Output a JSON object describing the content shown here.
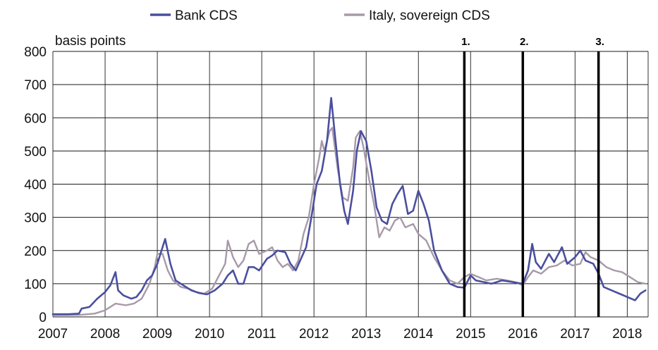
{
  "chart_data": {
    "type": "line",
    "ylabel": "basis points",
    "ylim": [
      0,
      800
    ],
    "xlim": [
      2007,
      2018.4
    ],
    "y_ticks": [
      0,
      100,
      200,
      300,
      400,
      500,
      600,
      700,
      800
    ],
    "x_ticks": [
      2007,
      2008,
      2009,
      2010,
      2011,
      2012,
      2013,
      2014,
      2015,
      2016,
      2017,
      2018
    ],
    "grid": true,
    "legend_position": "top-center",
    "vertical_markers": [
      {
        "label": "1.",
        "x": 2014.88
      },
      {
        "label": "2.",
        "x": 2016.0
      },
      {
        "label": "3.",
        "x": 2017.45
      }
    ],
    "series": [
      {
        "name": "Bank CDS",
        "color": "#4a4f9f",
        "points": [
          [
            2007.0,
            8
          ],
          [
            2007.3,
            8
          ],
          [
            2007.5,
            10
          ],
          [
            2007.55,
            25
          ],
          [
            2007.7,
            30
          ],
          [
            2007.85,
            55
          ],
          [
            2008.0,
            75
          ],
          [
            2008.1,
            95
          ],
          [
            2008.2,
            135
          ],
          [
            2008.25,
            80
          ],
          [
            2008.35,
            65
          ],
          [
            2008.5,
            55
          ],
          [
            2008.6,
            60
          ],
          [
            2008.7,
            80
          ],
          [
            2008.8,
            110
          ],
          [
            2008.9,
            125
          ],
          [
            2009.0,
            160
          ],
          [
            2009.1,
            210
          ],
          [
            2009.15,
            235
          ],
          [
            2009.25,
            160
          ],
          [
            2009.35,
            110
          ],
          [
            2009.5,
            95
          ],
          [
            2009.65,
            80
          ],
          [
            2009.8,
            72
          ],
          [
            2009.95,
            68
          ],
          [
            2010.1,
            80
          ],
          [
            2010.25,
            100
          ],
          [
            2010.35,
            125
          ],
          [
            2010.45,
            140
          ],
          [
            2010.55,
            100
          ],
          [
            2010.65,
            100
          ],
          [
            2010.75,
            150
          ],
          [
            2010.85,
            150
          ],
          [
            2010.95,
            140
          ],
          [
            2011.1,
            175
          ],
          [
            2011.2,
            185
          ],
          [
            2011.3,
            200
          ],
          [
            2011.45,
            195
          ],
          [
            2011.55,
            160
          ],
          [
            2011.65,
            140
          ],
          [
            2011.75,
            175
          ],
          [
            2011.85,
            210
          ],
          [
            2011.95,
            300
          ],
          [
            2012.05,
            400
          ],
          [
            2012.15,
            440
          ],
          [
            2012.25,
            530
          ],
          [
            2012.33,
            660
          ],
          [
            2012.4,
            550
          ],
          [
            2012.5,
            400
          ],
          [
            2012.58,
            320
          ],
          [
            2012.65,
            280
          ],
          [
            2012.75,
            380
          ],
          [
            2012.82,
            500
          ],
          [
            2012.9,
            560
          ],
          [
            2013.0,
            530
          ],
          [
            2013.1,
            440
          ],
          [
            2013.2,
            330
          ],
          [
            2013.3,
            290
          ],
          [
            2013.4,
            280
          ],
          [
            2013.5,
            340
          ],
          [
            2013.6,
            370
          ],
          [
            2013.7,
            395
          ],
          [
            2013.8,
            310
          ],
          [
            2013.9,
            320
          ],
          [
            2014.0,
            380
          ],
          [
            2014.1,
            340
          ],
          [
            2014.2,
            290
          ],
          [
            2014.3,
            200
          ],
          [
            2014.45,
            140
          ],
          [
            2014.6,
            100
          ],
          [
            2014.75,
            90
          ],
          [
            2014.88,
            88
          ],
          [
            2015.0,
            125
          ],
          [
            2015.1,
            110
          ],
          [
            2015.25,
            105
          ],
          [
            2015.4,
            100
          ],
          [
            2015.6,
            110
          ],
          [
            2015.8,
            105
          ],
          [
            2016.0,
            100
          ],
          [
            2016.1,
            140
          ],
          [
            2016.18,
            220
          ],
          [
            2016.25,
            165
          ],
          [
            2016.35,
            145
          ],
          [
            2016.5,
            190
          ],
          [
            2016.6,
            165
          ],
          [
            2016.75,
            210
          ],
          [
            2016.85,
            160
          ],
          [
            2017.0,
            180
          ],
          [
            2017.1,
            200
          ],
          [
            2017.2,
            170
          ],
          [
            2017.35,
            160
          ],
          [
            2017.45,
            130
          ],
          [
            2017.55,
            90
          ],
          [
            2017.7,
            80
          ],
          [
            2017.85,
            70
          ],
          [
            2018.0,
            60
          ],
          [
            2018.15,
            50
          ],
          [
            2018.25,
            70
          ],
          [
            2018.35,
            80
          ]
        ]
      },
      {
        "name": "Italy, sovereign CDS",
        "color": "#a899a9",
        "points": [
          [
            2007.0,
            5
          ],
          [
            2007.5,
            6
          ],
          [
            2007.8,
            10
          ],
          [
            2008.0,
            20
          ],
          [
            2008.2,
            40
          ],
          [
            2008.4,
            35
          ],
          [
            2008.55,
            40
          ],
          [
            2008.7,
            55
          ],
          [
            2008.85,
            100
          ],
          [
            2008.95,
            150
          ],
          [
            2009.0,
            190
          ],
          [
            2009.1,
            190
          ],
          [
            2009.2,
            140
          ],
          [
            2009.3,
            110
          ],
          [
            2009.45,
            90
          ],
          [
            2009.6,
            85
          ],
          [
            2009.75,
            75
          ],
          [
            2009.9,
            70
          ],
          [
            2010.05,
            85
          ],
          [
            2010.2,
            130
          ],
          [
            2010.3,
            160
          ],
          [
            2010.35,
            230
          ],
          [
            2010.45,
            180
          ],
          [
            2010.55,
            150
          ],
          [
            2010.65,
            170
          ],
          [
            2010.75,
            220
          ],
          [
            2010.85,
            230
          ],
          [
            2010.95,
            190
          ],
          [
            2011.1,
            200
          ],
          [
            2011.2,
            210
          ],
          [
            2011.3,
            170
          ],
          [
            2011.4,
            150
          ],
          [
            2011.5,
            160
          ],
          [
            2011.6,
            140
          ],
          [
            2011.7,
            170
          ],
          [
            2011.8,
            250
          ],
          [
            2011.9,
            300
          ],
          [
            2012.0,
            400
          ],
          [
            2012.1,
            480
          ],
          [
            2012.15,
            530
          ],
          [
            2012.2,
            500
          ],
          [
            2012.3,
            560
          ],
          [
            2012.35,
            570
          ],
          [
            2012.45,
            450
          ],
          [
            2012.55,
            360
          ],
          [
            2012.65,
            350
          ],
          [
            2012.75,
            450
          ],
          [
            2012.8,
            540
          ],
          [
            2012.88,
            560
          ],
          [
            2012.95,
            510
          ],
          [
            2013.05,
            420
          ],
          [
            2013.15,
            340
          ],
          [
            2013.25,
            240
          ],
          [
            2013.35,
            270
          ],
          [
            2013.45,
            260
          ],
          [
            2013.55,
            290
          ],
          [
            2013.65,
            300
          ],
          [
            2013.75,
            270
          ],
          [
            2013.9,
            280
          ],
          [
            2014.0,
            250
          ],
          [
            2014.15,
            230
          ],
          [
            2014.3,
            180
          ],
          [
            2014.45,
            140
          ],
          [
            2014.6,
            110
          ],
          [
            2014.75,
            100
          ],
          [
            2014.88,
            120
          ],
          [
            2015.0,
            130
          ],
          [
            2015.15,
            120
          ],
          [
            2015.3,
            110
          ],
          [
            2015.5,
            115
          ],
          [
            2015.7,
            110
          ],
          [
            2015.85,
            105
          ],
          [
            2016.0,
            95
          ],
          [
            2016.1,
            120
          ],
          [
            2016.2,
            140
          ],
          [
            2016.35,
            130
          ],
          [
            2016.5,
            150
          ],
          [
            2016.65,
            155
          ],
          [
            2016.8,
            170
          ],
          [
            2016.95,
            155
          ],
          [
            2017.1,
            160
          ],
          [
            2017.2,
            195
          ],
          [
            2017.3,
            180
          ],
          [
            2017.45,
            170
          ],
          [
            2017.6,
            150
          ],
          [
            2017.75,
            140
          ],
          [
            2017.9,
            135
          ],
          [
            2018.05,
            120
          ],
          [
            2018.2,
            105
          ],
          [
            2018.35,
            100
          ]
        ]
      }
    ]
  }
}
